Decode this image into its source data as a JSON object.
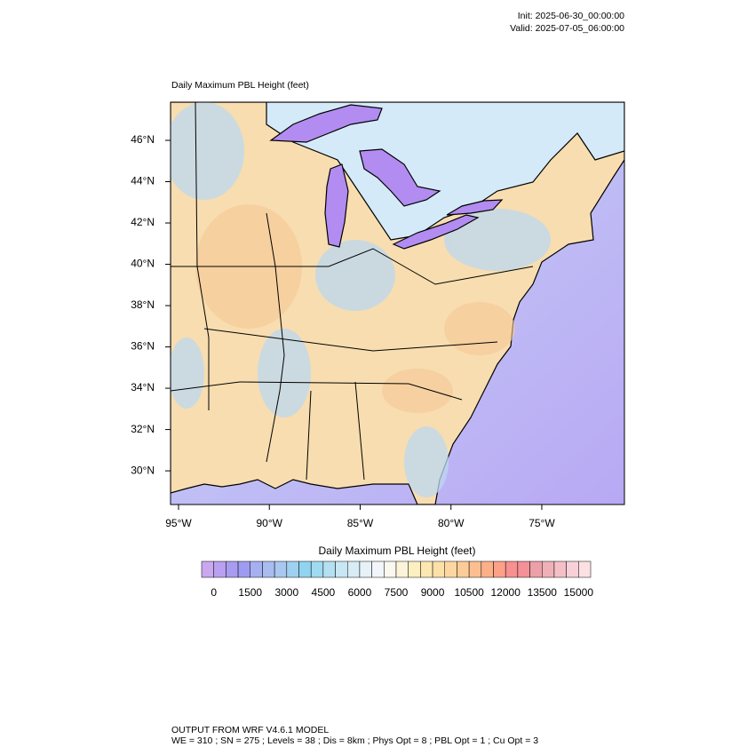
{
  "header": {
    "init": "Init: 2025-06-30_00:00:00",
    "valid": "Valid: 2025-07-05_06:00:00"
  },
  "map": {
    "title": "Daily Maximum PBL Height   (feet)",
    "xlim": [
      -95.44,
      -70.45
    ],
    "ylim": [
      28.37,
      47.85
    ],
    "xticks": [
      {
        "value": -95,
        "label": "95°W"
      },
      {
        "value": -90,
        "label": "90°W"
      },
      {
        "value": -85,
        "label": "85°W"
      },
      {
        "value": -80,
        "label": "80°W"
      },
      {
        "value": -75,
        "label": "75°W"
      }
    ],
    "yticks": [
      {
        "value": 30,
        "label": "30°N"
      },
      {
        "value": 32,
        "label": "32°N"
      },
      {
        "value": 34,
        "label": "34°N"
      },
      {
        "value": 36,
        "label": "36°N"
      },
      {
        "value": 38,
        "label": "38°N"
      },
      {
        "value": 40,
        "label": "40°N"
      },
      {
        "value": 42,
        "label": "42°N"
      },
      {
        "value": 44,
        "label": "44°N"
      },
      {
        "value": 46,
        "label": "46°N"
      }
    ]
  },
  "colorbar": {
    "title": "Daily Maximum PBL Height  (feet)",
    "lim": [
      0,
      15000
    ],
    "ticks": [
      0,
      1500,
      3000,
      4500,
      6000,
      7500,
      9000,
      10500,
      12000,
      13500,
      15000
    ],
    "colors": [
      "#c9a8f0",
      "#b9a0f0",
      "#a89cf0",
      "#9e9cf0",
      "#a6b0f0",
      "#a8bcf0",
      "#a8c8f0",
      "#9fd0f0",
      "#90d4f0",
      "#9fdaf0",
      "#b4e0f2",
      "#c8e6f4",
      "#d8ecf6",
      "#e6f2f8",
      "#f2f6fa",
      "#fbf8f0",
      "#fcf4d8",
      "#fcefc0",
      "#fce8b0",
      "#fce0a8",
      "#fcd8a0",
      "#fccc98",
      "#fcc090",
      "#fcb088",
      "#fca088",
      "#f89090",
      "#f49098",
      "#eca0a8",
      "#f0b0b8",
      "#f4c0c8",
      "#f8d0d8",
      "#fce0e4"
    ]
  },
  "footer": {
    "line1": "OUTPUT FROM WRF V4.6.1 MODEL",
    "line2": "WE = 310 ; SN = 275 ; Levels = 38 ; Dis = 8km ; Phys Opt = 8 ; PBL Opt = 1 ; Cu Opt = 3"
  }
}
